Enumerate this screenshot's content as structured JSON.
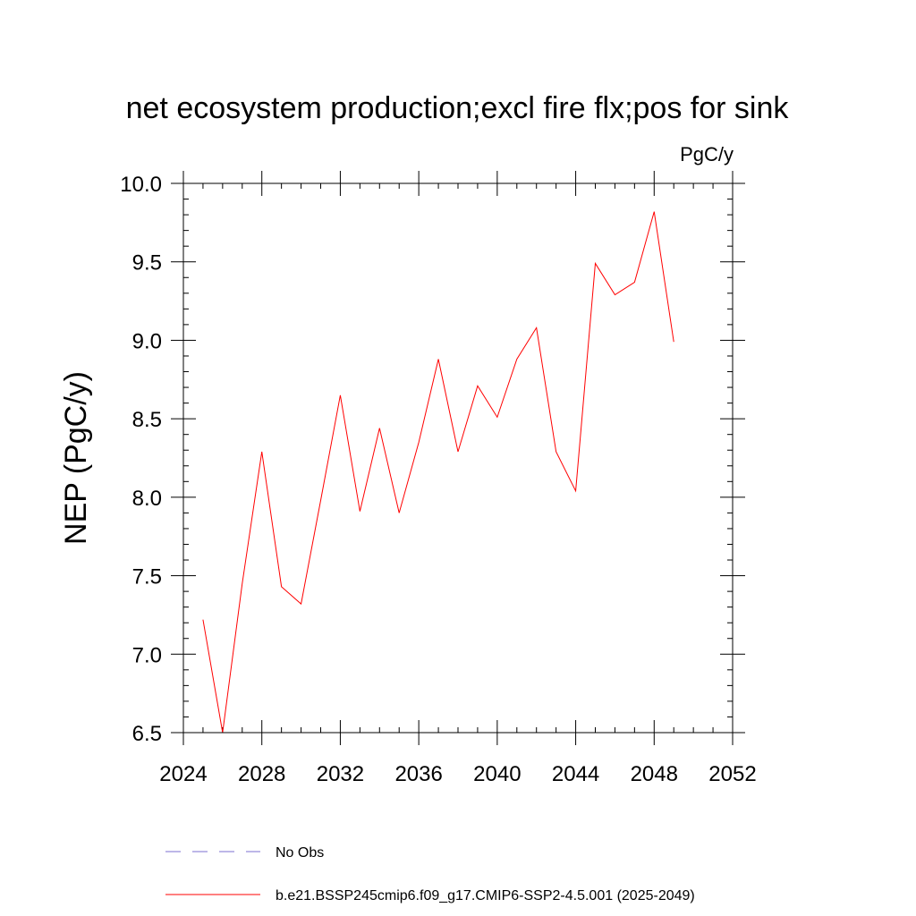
{
  "chart_data": {
    "type": "line",
    "title": "net ecosystem production;excl fire flx;pos for sink",
    "units_label": "PgC/y",
    "xlabel": "",
    "ylabel": "NEP  (PgC/y)",
    "xlim": [
      2024,
      2052
    ],
    "ylim": [
      6.5,
      10.0
    ],
    "x_ticks": [
      "2024",
      "2028",
      "2032",
      "2036",
      "2040",
      "2044",
      "2048",
      "2052"
    ],
    "y_ticks": [
      "6.5",
      "7.0",
      "7.5",
      "8.0",
      "8.5",
      "9.0",
      "9.5",
      "10.0"
    ],
    "grid": false,
    "legend_position": "bottom",
    "series": [
      {
        "name": "b.e21.BSSP245cmip6.f09_g17.CMIP6-SSP2-4.5.001 (2025-2049)",
        "color": "#ff0000",
        "x": [
          2025,
          2026,
          2027,
          2028,
          2029,
          2030,
          2031,
          2032,
          2033,
          2034,
          2035,
          2036,
          2037,
          2038,
          2039,
          2040,
          2041,
          2042,
          2043,
          2044,
          2045,
          2046,
          2047,
          2048,
          2049
        ],
        "y": [
          7.22,
          6.5,
          7.45,
          8.29,
          7.43,
          7.32,
          7.98,
          8.65,
          7.91,
          8.44,
          7.9,
          8.35,
          8.88,
          8.29,
          8.71,
          8.51,
          8.88,
          9.08,
          8.29,
          8.04,
          9.49,
          9.29,
          9.37,
          9.82,
          8.99
        ]
      }
    ],
    "legend": [
      {
        "label": "No Obs",
        "color": "#7b6fd0",
        "style": "dashed"
      },
      {
        "label": "b.e21.BSSP245cmip6.f09_g17.CMIP6-SSP2-4.5.001 (2025-2049)",
        "color": "#ff0000",
        "style": "solid"
      }
    ]
  }
}
